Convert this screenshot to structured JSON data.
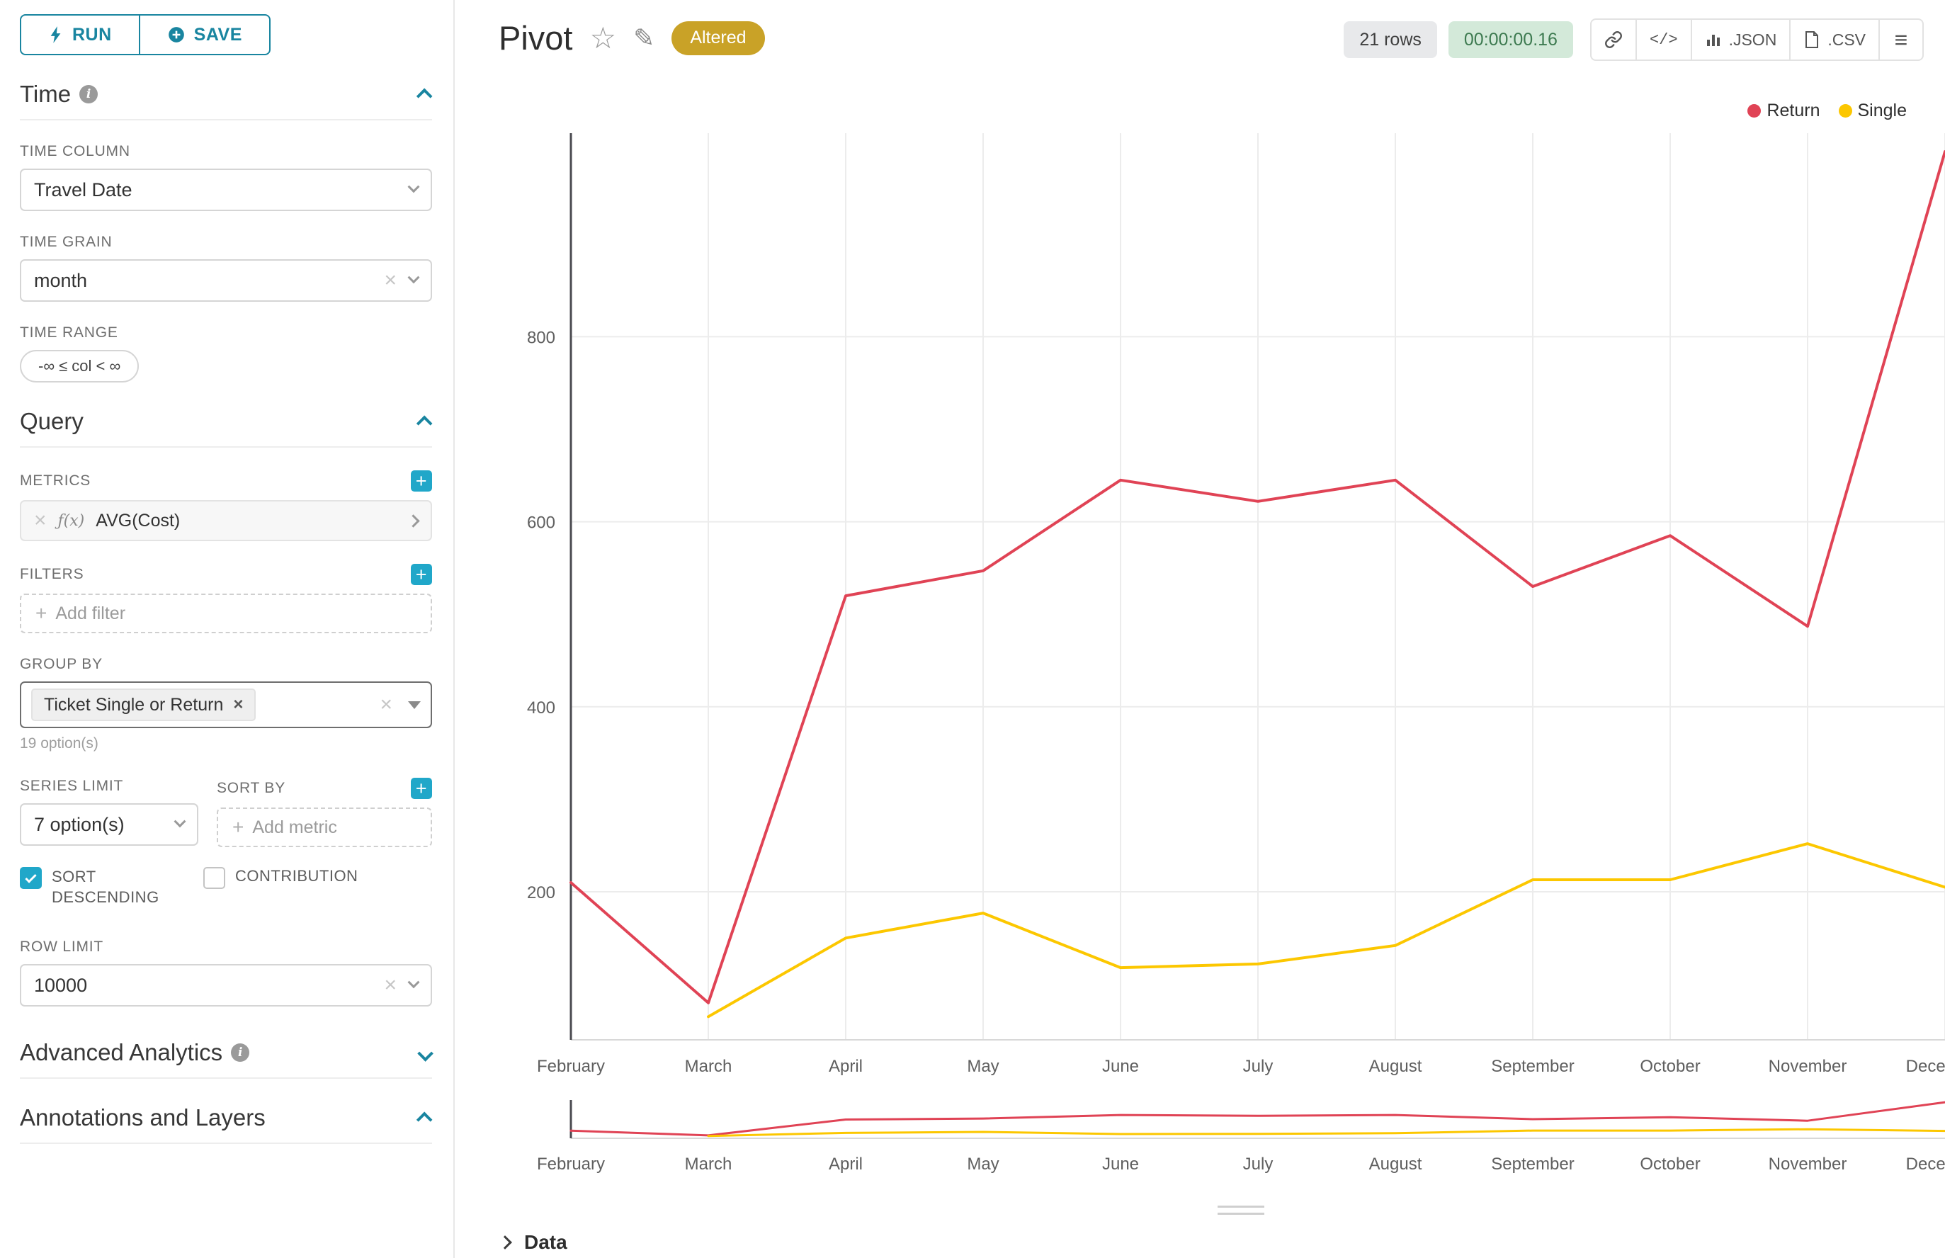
{
  "colors": {
    "accent": "#1985a0",
    "checkbox": "#20a7c9",
    "altered_bg": "#c9a227",
    "rows_badge_bg": "#e8e9eb",
    "timer_badge_bg": "#d3e9d9",
    "timer_badge_text": "#3d7a50",
    "series_return": "#e04355",
    "series_single": "#fcc700"
  },
  "sidebar": {
    "run_label": "RUN",
    "save_label": "SAVE",
    "time": {
      "title": "Time",
      "time_column": {
        "label": "TIME COLUMN",
        "value": "Travel Date"
      },
      "time_grain": {
        "label": "TIME GRAIN",
        "value": "month"
      },
      "time_range": {
        "label": "TIME RANGE",
        "value": "-∞ ≤ col < ∞"
      }
    },
    "query": {
      "title": "Query",
      "metrics": {
        "label": "METRICS",
        "fx_label": "ƒ(x)",
        "items": [
          {
            "name": "AVG(Cost)"
          }
        ]
      },
      "filters": {
        "label": "FILTERS",
        "placeholder": "Add filter"
      },
      "group_by": {
        "label": "GROUP BY",
        "chip": "Ticket Single or Return",
        "hint": "19 option(s)"
      },
      "series_limit": {
        "label": "SERIES LIMIT",
        "value": "7 option(s)"
      },
      "sort_by": {
        "label": "SORT BY",
        "placeholder": "Add metric"
      },
      "sort_descending": {
        "label": "SORT DESCENDING",
        "checked": true
      },
      "contribution": {
        "label": "CONTRIBUTION",
        "checked": false
      },
      "row_limit": {
        "label": "ROW LIMIT",
        "value": "10000"
      }
    },
    "advanced_analytics": {
      "title": "Advanced Analytics"
    },
    "annotations": {
      "title": "Annotations and Layers"
    }
  },
  "header": {
    "title": "Pivot",
    "altered_badge": "Altered",
    "rows_badge": "21 rows",
    "timer_badge": "00:00:00.16",
    "json_label": ".JSON",
    "csv_label": ".CSV",
    "code_label": "</>"
  },
  "chart_data": {
    "type": "line",
    "x": [
      "February",
      "March",
      "April",
      "May",
      "June",
      "July",
      "August",
      "September",
      "October",
      "November",
      "December"
    ],
    "series": [
      {
        "name": "Return",
        "color": "#e04355",
        "values": [
          210,
          80,
          520,
          547,
          645,
          622,
          645,
          530,
          585,
          487,
          1000
        ]
      },
      {
        "name": "Single",
        "color": "#fcc700",
        "values": [
          null,
          65,
          150,
          177,
          118,
          122,
          142,
          213,
          213,
          252,
          205
        ]
      }
    ],
    "yticks": [
      200,
      400,
      600,
      800
    ],
    "ylim": [
      40,
      1020
    ],
    "grid": true,
    "legend_position": "top-right",
    "xlabel": "",
    "ylabel": "",
    "title": ""
  },
  "data_panel": {
    "label": "Data"
  }
}
